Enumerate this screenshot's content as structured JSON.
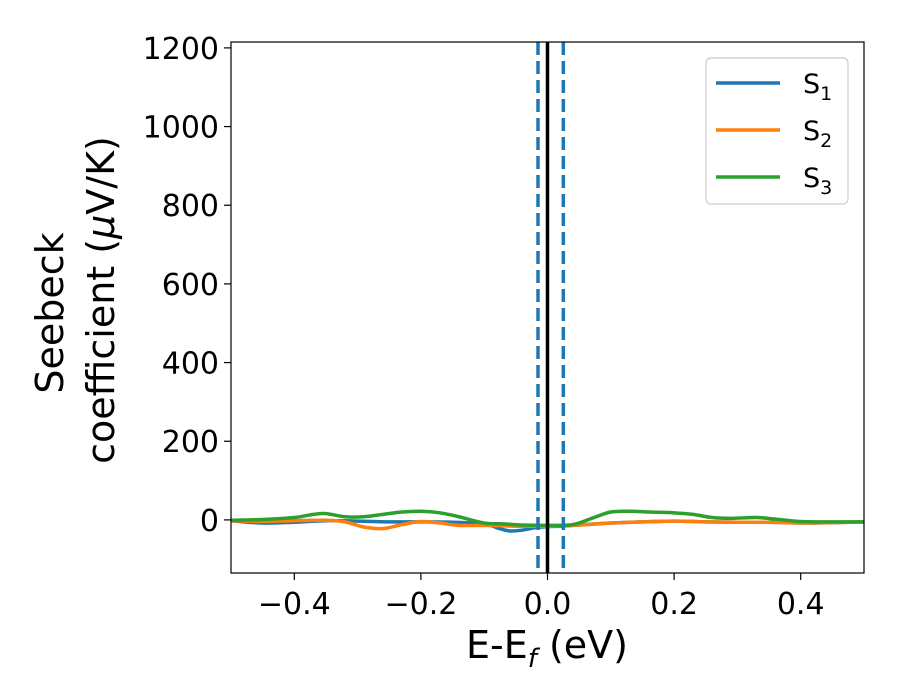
{
  "chart_data": {
    "type": "line",
    "xlabel": "E-E",
    "xlabel_sub": "f",
    "xlabel_unit": " (eV)",
    "ylabel_line1": "Seebeck",
    "ylabel_line2_prefix": "coefficient  (",
    "ylabel_mu": "μ",
    "ylabel_line2_suffix": "V/K)",
    "xlim": [
      -0.5,
      0.5
    ],
    "ylim": [
      -135,
      1215
    ],
    "x_ticks": [
      -0.4,
      -0.2,
      0.0,
      0.2,
      0.4
    ],
    "x_tick_labels": [
      "−0.4",
      "−0.2",
      "0.0",
      "0.2",
      "0.4"
    ],
    "y_ticks": [
      0,
      200,
      400,
      600,
      800,
      1000,
      1200
    ],
    "y_tick_labels": [
      "0",
      "200",
      "400",
      "600",
      "800",
      "1000",
      "1200"
    ],
    "grid": false,
    "legend_position": "top-right",
    "vertical_lines": [
      {
        "x": 0.0,
        "style": "solid",
        "color": "#000000"
      },
      {
        "x": -0.015,
        "style": "dashed",
        "color": "#1f77b4"
      },
      {
        "x": 0.025,
        "style": "dashed",
        "color": "#1f77b4"
      }
    ],
    "series": [
      {
        "name": "S",
        "sub": "1",
        "color": "#1f77b4",
        "x": [
          -0.5,
          -0.45,
          -0.4,
          -0.35,
          -0.3,
          -0.25,
          -0.2,
          -0.15,
          -0.1,
          -0.08,
          -0.06,
          -0.04,
          -0.02,
          0.0,
          0.02,
          0.05,
          0.1,
          0.15,
          0.2,
          0.25,
          0.3,
          0.35,
          0.4,
          0.45,
          0.5
        ],
        "y": [
          -2,
          -8,
          -6,
          -2,
          -3,
          -5,
          -5,
          -6,
          -10,
          -20,
          -28,
          -26,
          -20,
          -17,
          -16,
          -13,
          -8,
          -5,
          -3,
          -5,
          -6,
          -6,
          -8,
          -7,
          -5
        ]
      },
      {
        "name": "S",
        "sub": "2",
        "color": "#ff7f0e",
        "x": [
          -0.5,
          -0.45,
          -0.4,
          -0.35,
          -0.32,
          -0.29,
          -0.26,
          -0.23,
          -0.2,
          -0.17,
          -0.14,
          -0.1,
          -0.05,
          0.0,
          0.05,
          0.1,
          0.15,
          0.2,
          0.25,
          0.3,
          0.35,
          0.4,
          0.45,
          0.5
        ],
        "y": [
          -2,
          -4,
          -2,
          -1,
          -5,
          -18,
          -22,
          -12,
          -4,
          -8,
          -14,
          -14,
          -16,
          -16,
          -13,
          -8,
          -5,
          -3,
          -5,
          -6,
          -6,
          -8,
          -7,
          -5
        ]
      },
      {
        "name": "S",
        "sub": "3",
        "color": "#2ca02c",
        "x": [
          -0.5,
          -0.45,
          -0.4,
          -0.37,
          -0.35,
          -0.32,
          -0.29,
          -0.26,
          -0.23,
          -0.2,
          -0.17,
          -0.14,
          -0.1,
          -0.07,
          -0.04,
          0.0,
          0.04,
          0.07,
          0.1,
          0.13,
          0.16,
          0.2,
          0.23,
          0.26,
          0.29,
          0.33,
          0.36,
          0.4,
          0.45,
          0.5
        ],
        "y": [
          -1,
          1,
          6,
          14,
          16,
          8,
          8,
          14,
          20,
          22,
          18,
          8,
          -8,
          -10,
          -13,
          -14,
          -12,
          4,
          20,
          22,
          20,
          18,
          14,
          6,
          4,
          6,
          2,
          -4,
          -5,
          -5
        ]
      }
    ]
  }
}
